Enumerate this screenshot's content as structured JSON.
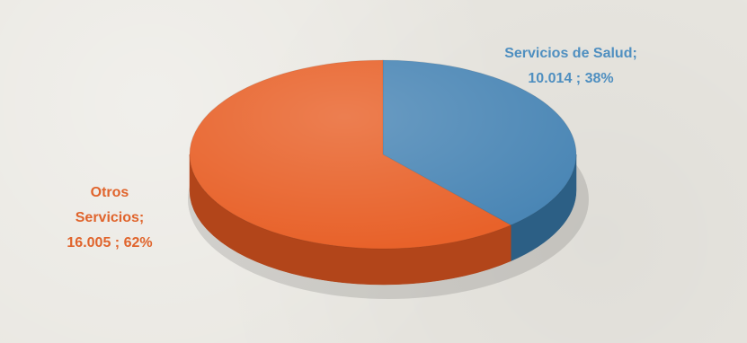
{
  "chart_data": {
    "type": "pie",
    "title": "",
    "slices": [
      {
        "name": "Servicios de Salud",
        "value": 10014,
        "percent": 38,
        "label_lines": [
          "Servicios de Salud;",
          "10.014 ; 38%"
        ],
        "color": "#4a86b5",
        "side_color": "#2c5f85",
        "label_color": "#4f8fc0"
      },
      {
        "name": "Otros Servicios",
        "value": 16005,
        "percent": 62,
        "label_lines": [
          "Otros",
          "Servicios;",
          "16.005 ; 62%"
        ],
        "color": "#e8622a",
        "side_color": "#b2451a",
        "label_color": "#e0642c"
      }
    ],
    "style": "3d",
    "legend": "none"
  }
}
